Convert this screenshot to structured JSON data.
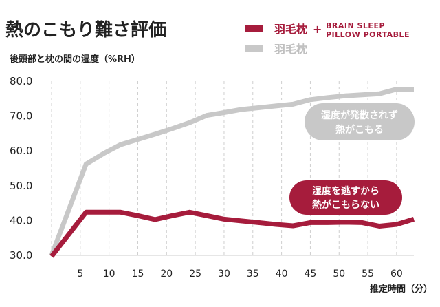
{
  "chart_data": {
    "type": "line",
    "title": "熱のこもり難さ評価",
    "ylabel": "後頭部と枕の間の湿度（%RH）",
    "xlabel": "推定時間（分）",
    "ylim": [
      30,
      80
    ],
    "xlim": [
      0,
      63
    ],
    "y_ticks": [
      "80.0",
      "70.0",
      "60.0",
      "50.0",
      "40.0",
      "30.0"
    ],
    "y_tick_values": [
      80,
      70,
      60,
      50,
      40,
      30
    ],
    "x_ticks": [
      "5",
      "10",
      "15",
      "20",
      "25",
      "30",
      "35",
      "40",
      "45",
      "50",
      "55",
      "60"
    ],
    "x_tick_values": [
      5,
      10,
      15,
      20,
      25,
      30,
      35,
      40,
      45,
      50,
      55,
      60
    ],
    "grid": "vertical dashed",
    "legend_position": "top-right",
    "series": [
      {
        "name": "羽毛枕",
        "color": "#c8c8c8",
        "x": [
          0,
          6,
          9,
          12,
          15,
          18,
          21,
          24,
          27,
          30,
          33,
          36,
          39,
          42,
          45,
          48,
          51,
          54,
          57,
          60,
          63
        ],
        "values": [
          30,
          56.2,
          59.2,
          61.8,
          63.3,
          64.8,
          66.4,
          68.1,
          70.2,
          71.0,
          71.9,
          72.4,
          72.9,
          73.4,
          74.7,
          75.3,
          75.8,
          76.1,
          76.4,
          77.7,
          77.7
        ]
      },
      {
        "name": "羽毛枕 + BRAIN SLEEP PILLOW PORTABLE",
        "color": "#a61c3c",
        "x": [
          0,
          6,
          9,
          12,
          15,
          18,
          21,
          24,
          27,
          30,
          33,
          36,
          39,
          42,
          45,
          48,
          51,
          54,
          57,
          60,
          63
        ],
        "values": [
          29.7,
          42.4,
          42.4,
          42.4,
          41.4,
          40.3,
          41.4,
          42.4,
          41.4,
          40.4,
          39.9,
          39.4,
          38.9,
          38.5,
          39.4,
          39.4,
          39.5,
          39.4,
          38.4,
          38.9,
          40.4
        ]
      }
    ],
    "legend": {
      "main_label": "羽毛枕",
      "plus": "+",
      "product_line1": "BRAIN SLEEP",
      "product_line2": "PILLOW PORTABLE",
      "gray_label": "羽毛枕"
    },
    "annotations": [
      {
        "line1": "湿度が発散されず",
        "line2": "熱がこもる",
        "color": "#c8c8c8",
        "near_series": "羽毛枕"
      },
      {
        "line1": "湿度を逃すから",
        "line2": "熱がこもらない",
        "color": "#a61c3c",
        "near_series": "羽毛枕 + BRAIN SLEEP PILLOW PORTABLE"
      }
    ]
  }
}
